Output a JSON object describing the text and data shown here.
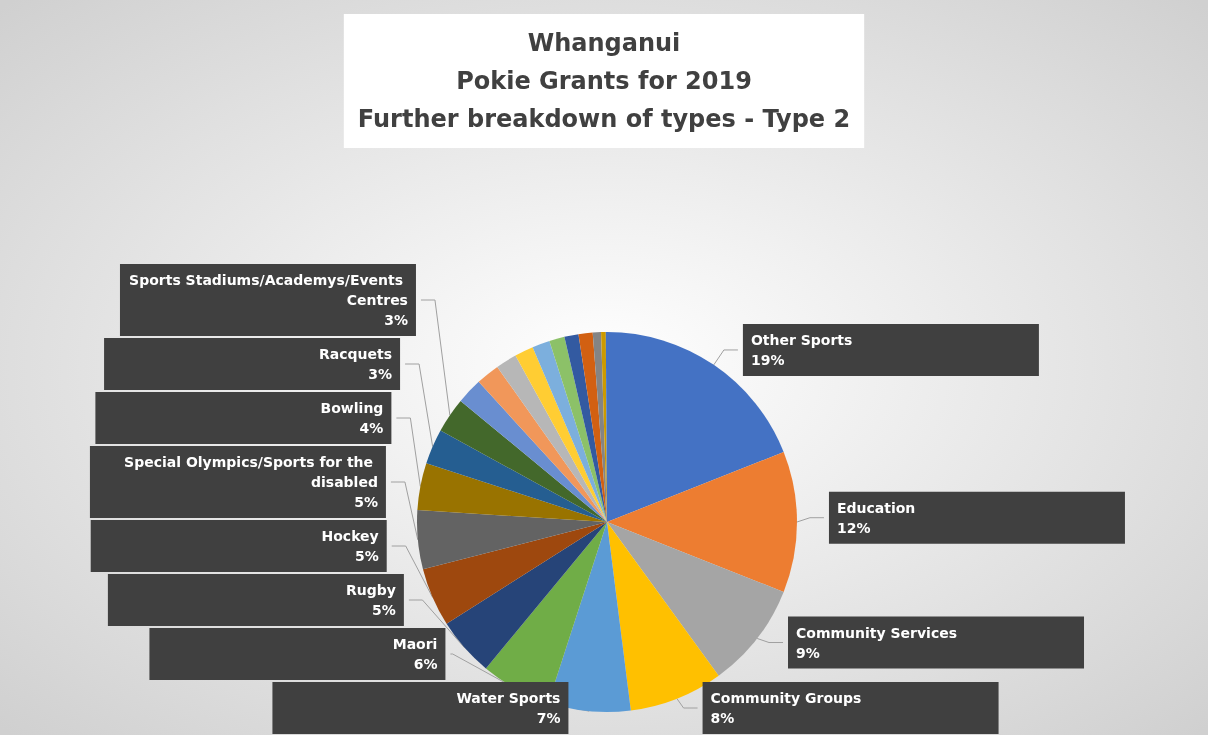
{
  "chart_data": {
    "type": "pie",
    "title": "Whanganui\nPokie Grants for 2019\nFurther breakdown of types - Type 2",
    "categories": [
      "Other Sports",
      "Education",
      "Community Services",
      "Community Groups",
      "Water Sports",
      "Maori",
      "Rugby",
      "Hockey",
      "Special Olympics/Sports for the disabled",
      "Bowling",
      "Racquets",
      "Sports Stadiums/Academys/Events Centres",
      null,
      null,
      null,
      null,
      null,
      null,
      null,
      null,
      null,
      null,
      null
    ],
    "values": [
      19,
      12,
      9,
      8,
      7,
      6,
      5,
      5,
      5,
      4,
      3,
      3,
      2.2,
      2,
      1.8,
      1.6,
      1.5,
      1.3,
      1.2,
      1.2,
      0.7,
      0.4,
      0.1
    ],
    "value_labels": [
      "19%",
      "12%",
      "9%",
      "8%",
      "7%",
      "6%",
      "5%",
      "5%",
      "5%",
      "4%",
      "3%",
      "3%",
      null,
      null,
      null,
      null,
      null,
      null,
      null,
      null,
      null,
      null,
      null
    ],
    "colors": [
      "#4472c4",
      "#ed7d31",
      "#a5a5a5",
      "#ffc000",
      "#5b9bd5",
      "#70ad47",
      "#264478",
      "#9e480e",
      "#636363",
      "#997300",
      "#255e91",
      "#43682b",
      "#698ed0",
      "#f1975a",
      "#b7b7b7",
      "#ffcd33",
      "#7cafdd",
      "#8cc168",
      "#335aa1",
      "#d26012",
      "#848484",
      "#cc9a00",
      "#4472c4"
    ],
    "legend": false
  }
}
